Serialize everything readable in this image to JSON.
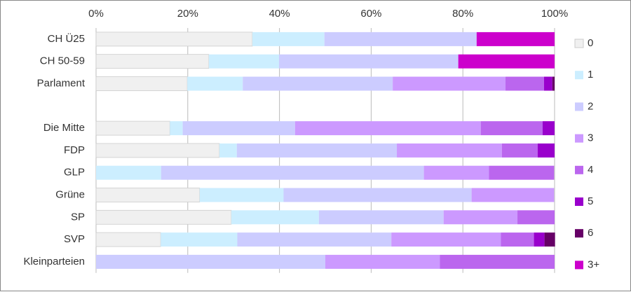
{
  "chart_data": {
    "type": "stacked-bar-horizontal",
    "categories": [
      "CH Ü25",
      "CH 50-59",
      "Parlament",
      null,
      "Die Mitte",
      "FDP",
      "GLP",
      "Grüne",
      "SP",
      "SVP",
      "Kleinparteien"
    ],
    "xlim": [
      0,
      100
    ],
    "xticks": [
      {
        "value": 0,
        "label": "0%"
      },
      {
        "value": 20,
        "label": "20%"
      },
      {
        "value": 40,
        "label": "40%"
      },
      {
        "value": 60,
        "label": "60%"
      },
      {
        "value": 80,
        "label": "80%"
      },
      {
        "value": 100,
        "label": "100%"
      }
    ],
    "grid": true,
    "legend": "right",
    "series": [
      {
        "name": "0",
        "color": "#f0f0f0",
        "values": [
          34.1,
          24.6,
          19.9,
          null,
          16.1,
          26.9,
          null,
          22.6,
          29.5,
          14.1,
          null
        ]
      },
      {
        "name": "1",
        "color": "#cceeff",
        "values": [
          15.7,
          15.3,
          12.1,
          null,
          2.8,
          3.8,
          14.2,
          18.3,
          19.1,
          16.7,
          null
        ]
      },
      {
        "name": "2",
        "color": "#ccccff",
        "values": [
          33.2,
          39.1,
          32.7,
          null,
          24.5,
          34.9,
          57.3,
          41.0,
          27.2,
          33.6,
          50.0
        ]
      },
      {
        "name": "3",
        "color": "#cc99ff",
        "values": [
          null,
          null,
          24.6,
          null,
          40.5,
          22.9,
          14.2,
          18.0,
          16.1,
          23.9,
          25.0
        ]
      },
      {
        "name": "4",
        "color": "#bb66ee",
        "values": [
          null,
          null,
          8.4,
          null,
          13.5,
          7.8,
          14.2,
          null,
          8.1,
          7.2,
          25.0
        ]
      },
      {
        "name": "5",
        "color": "#9900cc",
        "values": [
          null,
          null,
          1.8,
          null,
          2.6,
          3.7,
          null,
          null,
          null,
          2.3,
          null
        ]
      },
      {
        "name": "6",
        "color": "#660066",
        "values": [
          null,
          null,
          0.5,
          null,
          null,
          null,
          null,
          null,
          null,
          2.3,
          null
        ]
      },
      {
        "name": "3+",
        "color": "#cc00cc",
        "values": [
          17.0,
          21.0,
          null,
          null,
          null,
          null,
          null,
          null,
          null,
          null,
          null
        ]
      }
    ]
  }
}
